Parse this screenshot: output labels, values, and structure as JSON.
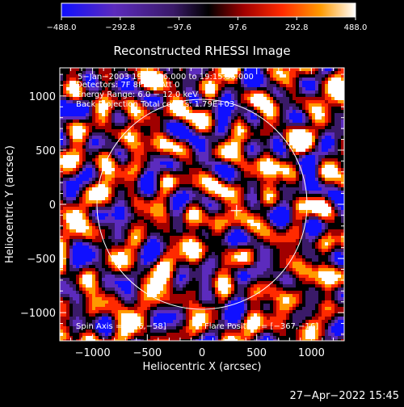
{
  "chart_data": {
    "type": "heatmap",
    "title": "Reconstructed RHESSI Image",
    "xlabel": "Heliocentric X (arcsec)",
    "ylabel": "Heliocentric Y (arcsec)",
    "xlim": [
      -1300,
      1300
    ],
    "ylim": [
      -1260,
      1260
    ],
    "x_ticks": [
      -1000,
      -500,
      0,
      500,
      1000
    ],
    "x_tick_labels": [
      "−1000",
      "−500",
      "0",
      "500",
      "1000"
    ],
    "y_ticks": [
      -1000,
      -500,
      0,
      500,
      1000
    ],
    "y_tick_labels": [
      "−1000",
      "−500",
      "0",
      "500",
      "1000"
    ],
    "colorbar": {
      "range": [
        -488.0,
        488.0
      ],
      "ticks": [
        -488.0,
        -292.8,
        -97.6,
        97.6,
        292.8,
        488.0
      ],
      "tick_labels": [
        "−488.0",
        "−292.8",
        "−97.6",
        "97.6",
        "292.8",
        "488.0"
      ],
      "colors": [
        "#1010ff",
        "#5c2bbd",
        "#3a1a68",
        "#000000",
        "#a00000",
        "#ff2a00",
        "#ff9a00",
        "#ffffff"
      ]
    },
    "annotations": {
      "time_range": "5−Jan−2003 19:13:36.000 to 19:15:36.000",
      "detectors": "Detectors: 7F 8F 9F, Att 0",
      "energy_range": "Energy Range: 6.0 − 12.0 keV",
      "method_counts": "Back Projection   Total counts: 1.79E+03",
      "spin_axis": "Spin Axis = [316,−58]",
      "flare_position": "Flare Position = [−367,−16]"
    },
    "solar_limb_radius_arcsec": 960,
    "marker": {
      "x": 316,
      "y": -58,
      "symbol": "+"
    },
    "grid": false
  },
  "footer": {
    "timestamp": "27−Apr−2022 15:45"
  }
}
